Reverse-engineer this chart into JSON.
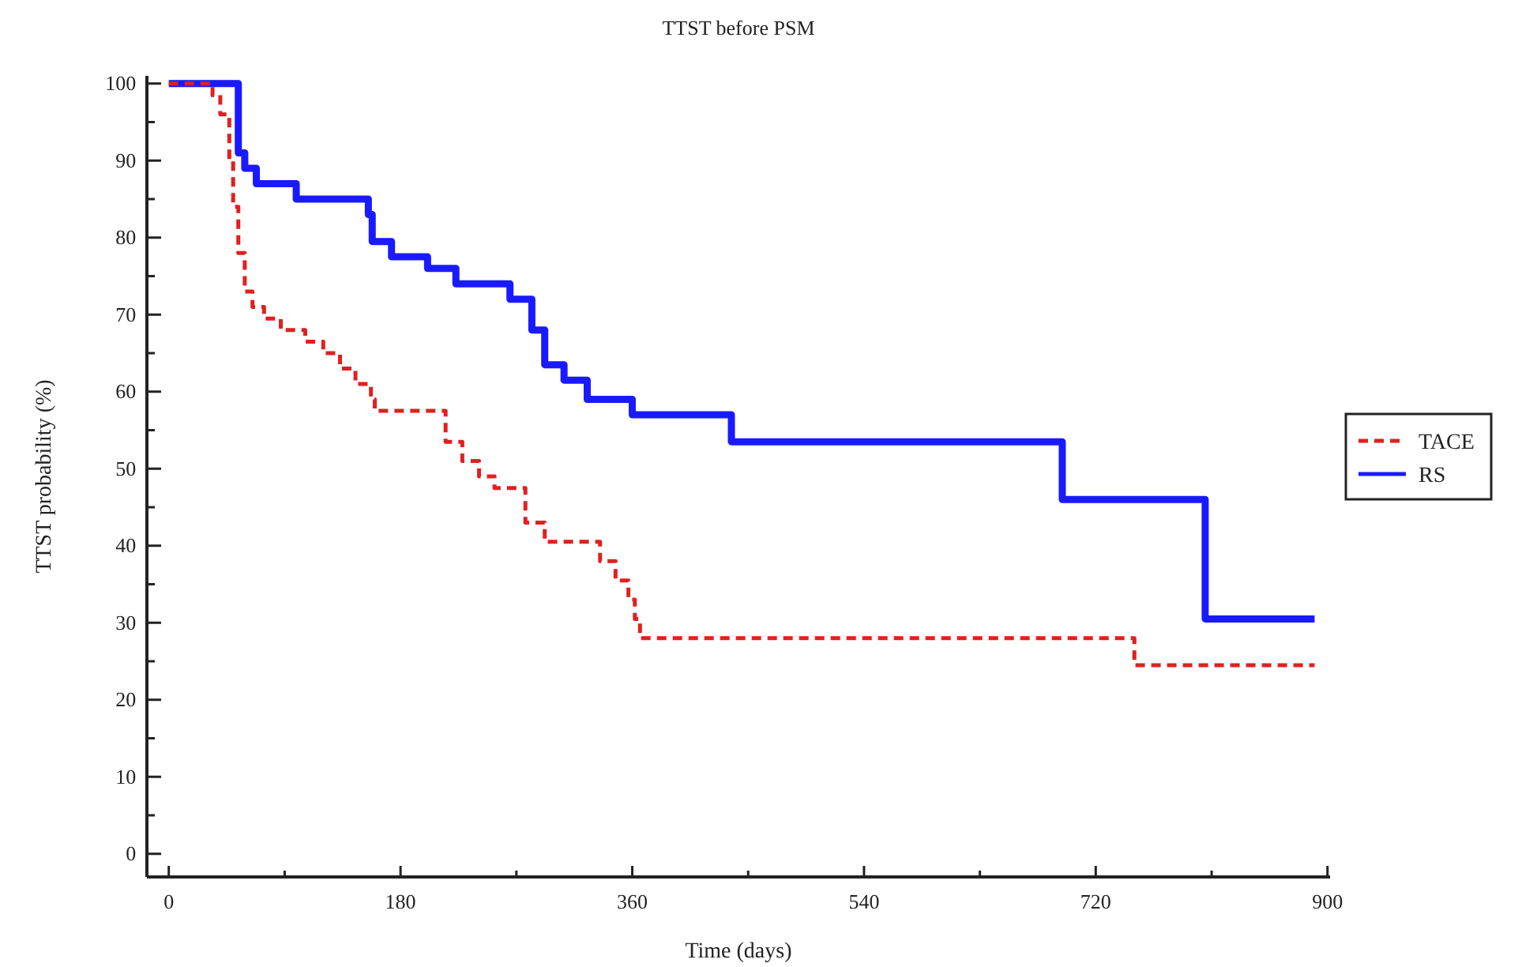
{
  "chart_data": {
    "type": "step",
    "title": "TTST before PSM",
    "xlabel": "Time (days)",
    "ylabel": "TTST probability (%)",
    "xlim": [
      -17,
      902
    ],
    "ylim": [
      -3,
      101
    ],
    "xticks": [
      0,
      {
        "value": 90,
        "label": null
      },
      180,
      {
        "value": 270,
        "label": null
      },
      360,
      {
        "value": 450,
        "label": null
      },
      540,
      {
        "value": 630,
        "label": null
      },
      720,
      {
        "value": 810,
        "label": null
      },
      900
    ],
    "yticks": [
      0,
      {
        "value": 5,
        "label": null
      },
      10,
      {
        "value": 15,
        "label": null
      },
      20,
      {
        "value": 25,
        "label": null
      },
      30,
      {
        "value": 35,
        "label": null
      },
      40,
      {
        "value": 45,
        "label": null
      },
      50,
      {
        "value": 55,
        "label": null
      },
      60,
      {
        "value": 65,
        "label": null
      },
      70,
      {
        "value": 75,
        "label": null
      },
      80,
      {
        "value": 85,
        "label": null
      },
      90,
      {
        "value": 95,
        "label": null
      },
      100
    ],
    "grid": false,
    "legend": "right",
    "marker": "none",
    "series": [
      {
        "name": "TACE",
        "color": "#e02020",
        "line_style": "dashed",
        "x": [
          0,
          34,
          40,
          47,
          50,
          54,
          59,
          65,
          74,
          87,
          106,
          120,
          133,
          145,
          157,
          160,
          215,
          228,
          241,
          253,
          277,
          292,
          335,
          347,
          357,
          362,
          366,
          750,
          890
        ],
        "values": [
          100,
          98.5,
          96,
          90,
          84,
          78,
          73,
          71,
          69.5,
          68,
          66.5,
          65,
          63,
          61,
          59,
          57.5,
          53.5,
          51,
          49,
          47.5,
          43,
          40.5,
          38,
          35.5,
          33,
          30.5,
          28,
          24.5,
          24.5
        ]
      },
      {
        "name": "RS",
        "color": "#1a1aff",
        "line_style": "solid",
        "x": [
          0,
          54,
          59,
          68,
          99,
          155,
          158,
          173,
          201,
          223,
          265,
          282,
          292,
          307,
          325,
          360,
          437,
          694,
          805,
          890
        ],
        "values": [
          100,
          91,
          89,
          87,
          85,
          83,
          79.5,
          77.5,
          76,
          74,
          72,
          68,
          63.5,
          61.5,
          59,
          57,
          53.5,
          46,
          30.5,
          30.5
        ]
      }
    ]
  }
}
